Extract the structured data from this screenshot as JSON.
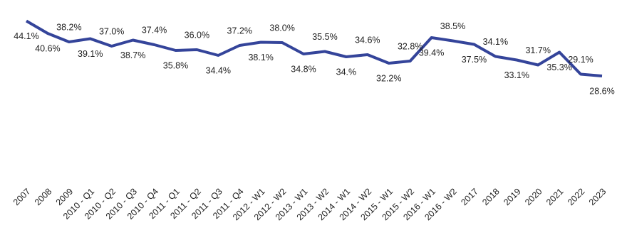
{
  "chart_data": {
    "type": "line",
    "categories": [
      "2007",
      "2008",
      "2009",
      "2010 - Q1",
      "2010 - Q2",
      "2010 - Q3",
      "2010 - Q4",
      "2011 - Q1",
      "2011 - Q2",
      "2011 - Q3",
      "2011 - Q4",
      "2012 - W1",
      "2012 - W2",
      "2013 - W1",
      "2013 - W2",
      "2014 - W1",
      "2014 - W2",
      "2015 - W1",
      "2015 - W2",
      "2016 - W1",
      "2016 - W2",
      "2017",
      "2018",
      "2019",
      "2020",
      "2021",
      "2022",
      "2023"
    ],
    "values": [
      44.1,
      40.6,
      38.2,
      39.1,
      37.0,
      38.7,
      37.4,
      35.8,
      36.0,
      34.4,
      37.2,
      38.1,
      38.0,
      34.8,
      35.5,
      34.0,
      34.6,
      32.2,
      32.8,
      39.4,
      38.5,
      37.5,
      34.1,
      33.1,
      31.7,
      35.3,
      29.1,
      28.6
    ],
    "value_labels": [
      "44.1%",
      "40.6%",
      "38.2%",
      "39.1%",
      "37.0%",
      "38.7%",
      "37.4%",
      "35.8%",
      "36.0%",
      "34.4%",
      "37.2%",
      "38.1%",
      "38.0%",
      "34.8%",
      "35.5%",
      "34.%",
      "34.6%",
      "32.2%",
      "32.8%",
      "39.4%",
      "38.5%",
      "37.5%",
      "34.1%",
      "33.1%",
      "31.7%",
      "35.3%",
      "29.1%",
      "28.6%"
    ],
    "color": "#34449a",
    "ylim": [
      0,
      48
    ]
  }
}
